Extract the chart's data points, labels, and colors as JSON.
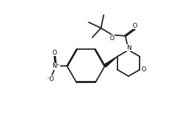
{
  "bg_color": "#ffffff",
  "line_color": "#1a1a1a",
  "line_width": 1.3,
  "figsize": [
    2.75,
    1.85
  ],
  "dpi": 100,
  "xlim": [
    0,
    10
  ],
  "ylim": [
    0,
    7
  ]
}
